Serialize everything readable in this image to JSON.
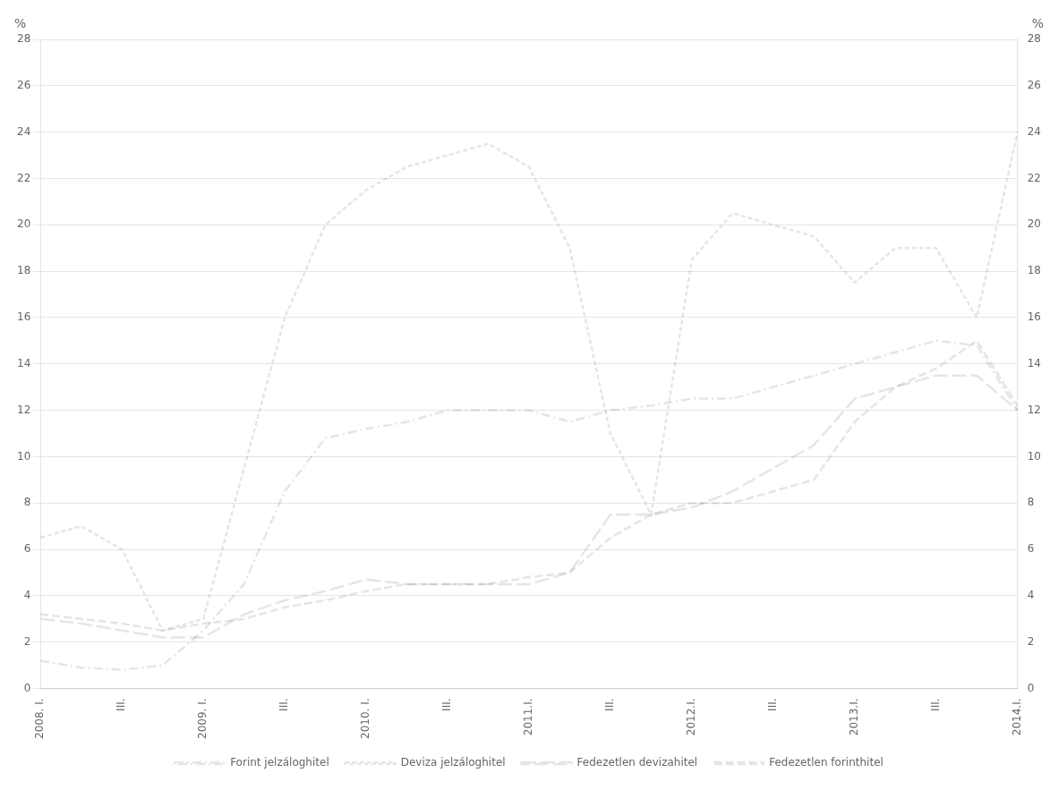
{
  "chart_data": {
    "type": "line",
    "categories": [
      "2008. I.",
      null,
      "III.",
      null,
      "2009. I.",
      null,
      "III.",
      null,
      "2010. I.",
      null,
      "III.",
      null,
      "2011.I.",
      null,
      "III.",
      null,
      "2012.I.",
      null,
      "III.",
      null,
      "2013.I.",
      null,
      "III.",
      null,
      "2014.I."
    ],
    "series": [
      {
        "name": "Forint jelzáloghitel",
        "line_style": "dashdot",
        "values": [
          1.2,
          0.9,
          0.8,
          1.0,
          2.5,
          4.5,
          8.5,
          10.8,
          11.2,
          11.5,
          12.0,
          12.0,
          12.0,
          11.5,
          12.0,
          12.2,
          12.5,
          12.5,
          13.0,
          13.5,
          14.0,
          14.5,
          15.0,
          14.8,
          12.0
        ]
      },
      {
        "name": "Deviza jelzáloghitel",
        "line_style": "dashed",
        "values": [
          6.5,
          7.0,
          6.0,
          2.5,
          3.0,
          9.5,
          16.0,
          20.0,
          21.5,
          22.5,
          23.0,
          23.5,
          22.5,
          19.0,
          11.0,
          7.5,
          18.5,
          20.5,
          20.0,
          19.5,
          17.5,
          19.0,
          19.0,
          16.0,
          24.0
        ]
      },
      {
        "name": "Fedezetlen devizahitel",
        "line_style": "longdash",
        "values": [
          3.0,
          2.8,
          2.5,
          2.2,
          2.2,
          3.2,
          3.8,
          4.2,
          4.7,
          4.5,
          4.5,
          4.5,
          4.5,
          5.0,
          7.5,
          7.5,
          7.8,
          8.5,
          9.5,
          10.5,
          12.5,
          13.0,
          13.5,
          13.5,
          12.0
        ]
      },
      {
        "name": "Fedezetlen forinthitel",
        "line_style": "mediumdash",
        "values": [
          3.2,
          3.0,
          2.8,
          2.5,
          2.8,
          3.0,
          3.5,
          3.8,
          4.2,
          4.5,
          4.5,
          4.5,
          4.8,
          5.0,
          6.5,
          7.5,
          8.0,
          8.0,
          8.5,
          9.0,
          11.5,
          13.0,
          13.8,
          15.0,
          12.2
        ]
      }
    ],
    "ylim": [
      0,
      28
    ],
    "yticks": [
      0,
      2,
      4,
      6,
      8,
      10,
      12,
      14,
      16,
      18,
      20,
      22,
      24,
      26,
      28
    ],
    "y2lim": [
      0,
      28
    ],
    "y2ticks": [
      0,
      2,
      4,
      6,
      8,
      10,
      12,
      14,
      16,
      18,
      20,
      22,
      24,
      26,
      28
    ],
    "y_label": "%",
    "y2_label": "%",
    "grid": true,
    "legend": "bottom"
  }
}
